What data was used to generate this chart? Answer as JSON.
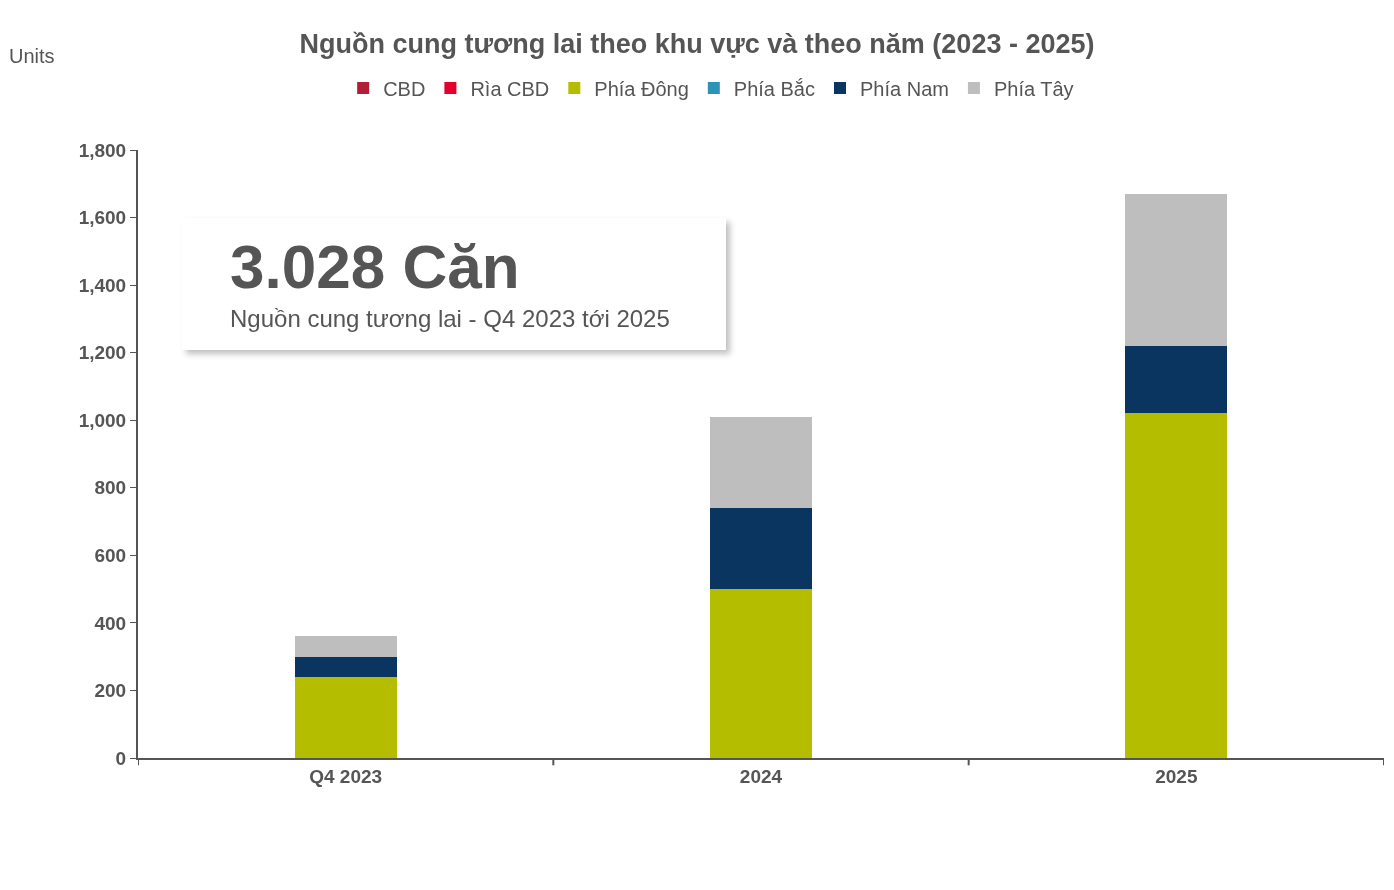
{
  "chart_data": {
    "type": "bar",
    "title": "Nguồn cung tương lai theo khu vực và theo năm (2023 - 2025)",
    "ylabel": "Units",
    "categories": [
      "Q4 2023",
      "2024",
      "2025"
    ],
    "stacked": true,
    "series": [
      {
        "name": "CBD",
        "color": "#b01f35",
        "values": [
          null,
          null,
          null
        ]
      },
      {
        "name": "Rìa CBD",
        "color": "#e4002b",
        "values": [
          null,
          null,
          null
        ]
      },
      {
        "name": "Phía Đông",
        "color": "#b5bd00",
        "values": [
          240,
          500,
          1020
        ]
      },
      {
        "name": "Phía Bắc",
        "color": "#2b94b8",
        "values": [
          null,
          null,
          null
        ]
      },
      {
        "name": "Phía Nam",
        "color": "#0b3561",
        "values": [
          60,
          240,
          200
        ]
      },
      {
        "name": "Phía Tây",
        "color": "#bebebe",
        "values": [
          60,
          270,
          450
        ]
      }
    ],
    "ylim": [
      0,
      1800
    ],
    "yticks": [
      {
        "value": 0,
        "label": "0"
      },
      {
        "value": 200,
        "label": "200"
      },
      {
        "value": 400,
        "label": "400"
      },
      {
        "value": 600,
        "label": "600"
      },
      {
        "value": 800,
        "label": "800"
      },
      {
        "value": 1000,
        "label": "1,000"
      },
      {
        "value": 1200,
        "label": "1,200"
      },
      {
        "value": 1400,
        "label": "1,400"
      },
      {
        "value": 1600,
        "label": "1,600"
      },
      {
        "value": 1800,
        "label": "1,800"
      }
    ],
    "grid": false,
    "legend": "top",
    "annotations": [
      "3.028 Căn",
      "Nguồn cung tương lai - Q4 2023 tới 2025"
    ]
  }
}
